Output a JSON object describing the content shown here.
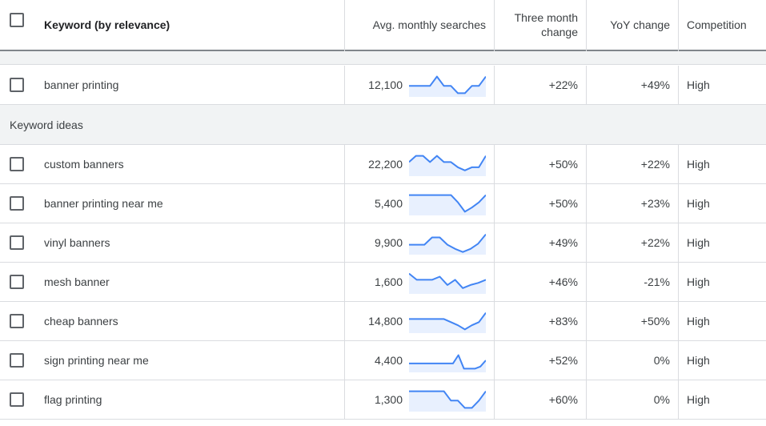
{
  "header": {
    "keyword_label": "Keyword (by relevance)",
    "avg_label": "Avg. monthly searches",
    "three_month_line1": "Three month",
    "three_month_line2": "change",
    "yoy_label": "YoY change",
    "competition_label": "Competition"
  },
  "sparkline_color": "#4285f4",
  "sparkline_fill": "#e8f0fe",
  "provided": [
    {
      "keyword": "banner printing",
      "avg": "12,100",
      "three_month": "+22%",
      "yoy": "+49%",
      "competition": "High",
      "trend": [
        0.45,
        0.45,
        0.45,
        0.45,
        0.9,
        0.45,
        0.45,
        0.1,
        0.1,
        0.45,
        0.45,
        0.9
      ]
    }
  ],
  "section_label": "Keyword ideas",
  "ideas": [
    {
      "keyword": "custom banners",
      "avg": "22,200",
      "three_month": "+50%",
      "yoy": "+22%",
      "competition": "High",
      "trend": [
        0.6,
        0.9,
        0.9,
        0.6,
        0.9,
        0.6,
        0.6,
        0.35,
        0.2,
        0.35,
        0.35,
        0.9
      ]
    },
    {
      "keyword": "banner printing near me",
      "avg": "5,400",
      "three_month": "+50%",
      "yoy": "+23%",
      "competition": "High",
      "trend": [
        0.9,
        0.9,
        0.9,
        0.9,
        0.9,
        0.9,
        0.9,
        0.55,
        0.1,
        0.3,
        0.55,
        0.9
      ]
    },
    {
      "keyword": "vinyl banners",
      "avg": "9,900",
      "three_month": "+49%",
      "yoy": "+22%",
      "competition": "High",
      "trend": [
        0.4,
        0.4,
        0.4,
        0.75,
        0.75,
        0.4,
        0.2,
        0.05,
        0.2,
        0.45,
        0.9
      ]
    },
    {
      "keyword": "mesh banner",
      "avg": "1,600",
      "three_month": "+46%",
      "yoy": "-21%",
      "competition": "High",
      "trend": [
        0.9,
        0.6,
        0.6,
        0.6,
        0.75,
        0.35,
        0.6,
        0.2,
        0.35,
        0.45,
        0.6
      ]
    },
    {
      "keyword": "cheap banners",
      "avg": "14,800",
      "three_month": "+83%",
      "yoy": "+50%",
      "competition": "High",
      "trend": [
        0.6,
        0.6,
        0.6,
        0.6,
        0.6,
        0.6,
        0.45,
        0.3,
        0.1,
        0.3,
        0.45,
        0.9
      ]
    },
    {
      "keyword": "sign printing near me",
      "avg": "4,400",
      "three_month": "+52%",
      "yoy": "0%",
      "competition": "High",
      "trend": [
        0.35,
        0.35,
        0.35,
        0.35,
        0.35,
        0.35,
        0.35,
        0.35,
        0.35,
        0.75,
        0.1,
        0.1,
        0.1,
        0.2,
        0.5
      ]
    },
    {
      "keyword": "flag printing",
      "avg": "1,300",
      "three_month": "+60%",
      "yoy": "0%",
      "competition": "High",
      "trend": [
        0.9,
        0.9,
        0.9,
        0.9,
        0.9,
        0.9,
        0.45,
        0.45,
        0.1,
        0.1,
        0.45,
        0.9
      ]
    }
  ]
}
